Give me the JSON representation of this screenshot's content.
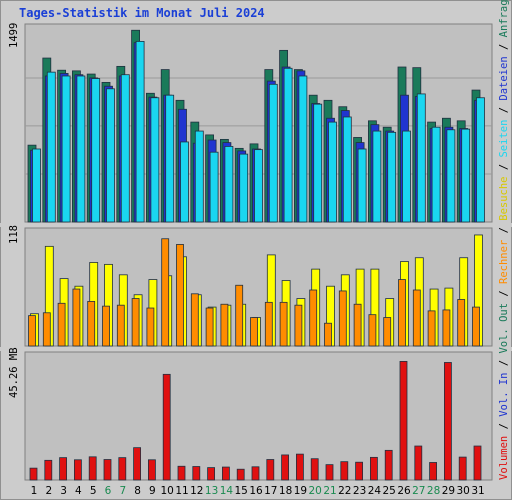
{
  "title": "Tages-Statistik im Monat Juli 2024",
  "colors": {
    "background": "#cccccc",
    "panel": "#c0c0c0",
    "anfragen": "#1a7a5a",
    "dateien": "#2035d0",
    "seiten": "#1ad6f0",
    "besuche": "#ffff00",
    "rechner": "#ff8c00",
    "volumen": "#e01010",
    "vol_in": "#2035d0",
    "vol_out": "#1a7a5a",
    "title": "#1a3fd6",
    "weekend": "#1a8a50",
    "weekday": "#000000",
    "separator": "#000000"
  },
  "chart_data": [
    {
      "type": "bar",
      "panel": "top",
      "y_max_label": "1499",
      "ylim": [
        0,
        1499
      ],
      "categories": [
        "1",
        "2",
        "3",
        "4",
        "5",
        "6",
        "7",
        "8",
        "9",
        "10",
        "11",
        "12",
        "13",
        "14",
        "15",
        "16",
        "17",
        "18",
        "19",
        "20",
        "21",
        "22",
        "23",
        "24",
        "25",
        "26",
        "27",
        "28",
        "29",
        "30",
        "31"
      ],
      "series": [
        {
          "name": "Anfragen",
          "values": [
            600,
            1280,
            1185,
            1180,
            1155,
            1090,
            1215,
            1497,
            1005,
            1190,
            950,
            780,
            680,
            645,
            575,
            610,
            1190,
            1340,
            1190,
            990,
            950,
            900,
            660,
            790,
            740,
            1210,
            1205,
            780,
            810,
            790,
            1030
          ]
        },
        {
          "name": "Dateien",
          "values": [
            560,
            1140,
            1160,
            1150,
            1125,
            1060,
            1140,
            1400,
            975,
            990,
            880,
            615,
            640,
            620,
            555,
            570,
            1100,
            1210,
            1180,
            925,
            810,
            870,
            620,
            760,
            710,
            990,
            980,
            730,
            740,
            730,
            950
          ]
        },
        {
          "name": "Seiten",
          "values": [
            570,
            1170,
            1140,
            1140,
            1120,
            1040,
            1150,
            1410,
            970,
            990,
            625,
            710,
            545,
            590,
            530,
            565,
            1075,
            1200,
            1140,
            920,
            780,
            820,
            570,
            710,
            700,
            710,
            1000,
            740,
            720,
            725,
            970
          ]
        }
      ]
    },
    {
      "type": "bar",
      "panel": "middle",
      "y_max_label": "118",
      "ylim": [
        0,
        118
      ],
      "categories": [
        "1",
        "2",
        "3",
        "4",
        "5",
        "6",
        "7",
        "8",
        "9",
        "10",
        "11",
        "12",
        "13",
        "14",
        "15",
        "16",
        "17",
        "18",
        "19",
        "20",
        "21",
        "22",
        "23",
        "24",
        "25",
        "26",
        "27",
        "28",
        "29",
        "30",
        "31"
      ],
      "series": [
        {
          "name": "Besuche",
          "values": [
            34,
            105,
            71,
            63,
            88,
            86,
            75,
            54,
            70,
            74,
            94,
            54,
            41,
            43,
            44,
            30,
            96,
            69,
            50,
            81,
            63,
            75,
            81,
            81,
            50,
            89,
            93,
            60,
            61,
            93,
            117
          ]
        },
        {
          "name": "Rechner",
          "values": [
            32,
            35,
            45,
            60,
            47,
            42,
            43,
            50,
            40,
            113,
            107,
            55,
            40,
            44,
            64,
            30,
            46,
            46,
            43,
            59,
            24,
            58,
            44,
            33,
            30,
            70,
            59,
            37,
            38,
            49,
            41
          ]
        }
      ]
    },
    {
      "type": "bar",
      "panel": "bottom",
      "y_max_label": "45.26 MB",
      "ylim": [
        0,
        45.26
      ],
      "categories": [
        "1",
        "2",
        "3",
        "4",
        "5",
        "6",
        "7",
        "8",
        "9",
        "10",
        "11",
        "12",
        "13",
        "14",
        "15",
        "16",
        "17",
        "18",
        "19",
        "20",
        "21",
        "22",
        "23",
        "24",
        "25",
        "26",
        "27",
        "28",
        "29",
        "30",
        "31"
      ],
      "series": [
        {
          "name": "Volumen",
          "values": [
            4.4,
            7.3,
            8.3,
            7.5,
            8.6,
            7.6,
            8.3,
            12.0,
            7.5,
            39.2,
            5.1,
            5.0,
            4.6,
            4.8,
            4.0,
            4.9,
            7.6,
            9.3,
            9.6,
            7.9,
            5.7,
            6.8,
            6.6,
            8.4,
            11.0,
            44.0,
            12.6,
            6.5,
            43.6,
            8.5,
            12.6
          ]
        }
      ]
    }
  ],
  "weekend_days": [
    6,
    7,
    13,
    14,
    20,
    21,
    27,
    28
  ],
  "right_legend": [
    {
      "label": "Anfragen",
      "color": "#1a7a5a"
    },
    {
      "label": "Dateien",
      "color": "#2035d0"
    },
    {
      "label": "Seiten",
      "color": "#1ad6f0"
    },
    {
      "label": "Besuche",
      "color": "#d8c800"
    },
    {
      "label": "Rechner",
      "color": "#ff8c00"
    },
    {
      "label": "Vol. Out",
      "color": "#1a7a5a"
    },
    {
      "label": "Vol. In",
      "color": "#2035d0"
    },
    {
      "label": "Volumen",
      "color": "#e01010"
    }
  ]
}
